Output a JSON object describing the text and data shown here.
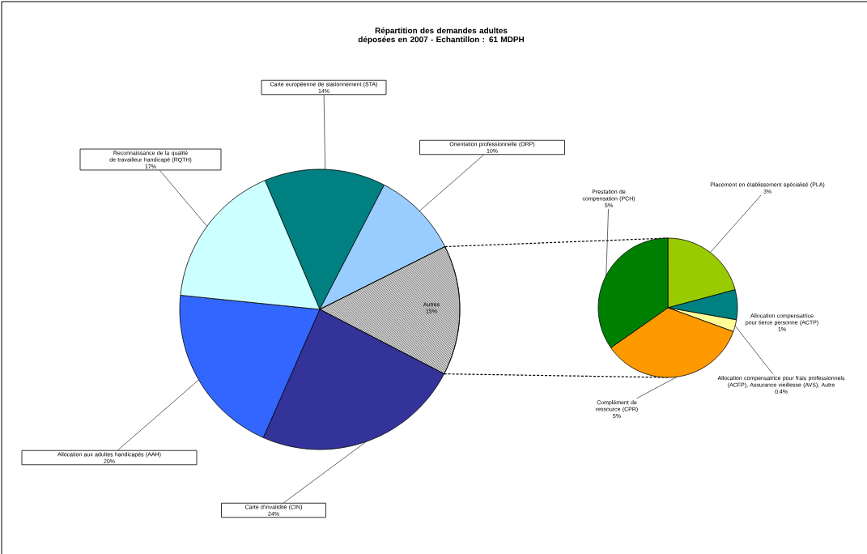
{
  "chart_data": [
    {
      "type": "pie",
      "title": "Répartition des demandes adultes déposées en 2007 - Echantillon : 61 MDPH",
      "categories": [
        "Carte européenne de stationnement (STA)",
        "Orientation professionnelle (ORP)",
        "Autres",
        "Carte d'invalidité (CIN)",
        "Allocation aux adultes handicapés (AAH)",
        "Reconnaissance de la qualité de travailleur handicapé (RQTH)"
      ],
      "values": [
        14,
        10,
        15,
        24,
        20,
        17
      ],
      "value_labels": [
        "14%",
        "10%",
        "15%",
        "24%",
        "20%",
        "17%"
      ],
      "colors": [
        "#008080",
        "#99ccff",
        "#d0d0d0",
        "#333399",
        "#3366ff",
        "#ccffff"
      ]
    },
    {
      "type": "pie",
      "categories": [
        "Placement en établissement spécialisé (PLA)",
        "Allocation compensatrice pour tierce personne (ACTP)",
        "Allocation compensatrice pour frais professionnels (ACFP), Assurance vieillesse (AVS), Autre",
        "Complément de ressource (CPR)",
        "Prestation de compensation (PCH)"
      ],
      "values": [
        3,
        1,
        0.4,
        5,
        5
      ],
      "value_labels": [
        "3%",
        "1%",
        "0.4%",
        "5%",
        "5%"
      ],
      "colors": [
        "#99cc00",
        "#008080",
        "#ffff99",
        "#ff9900",
        "#008000"
      ]
    }
  ]
}
